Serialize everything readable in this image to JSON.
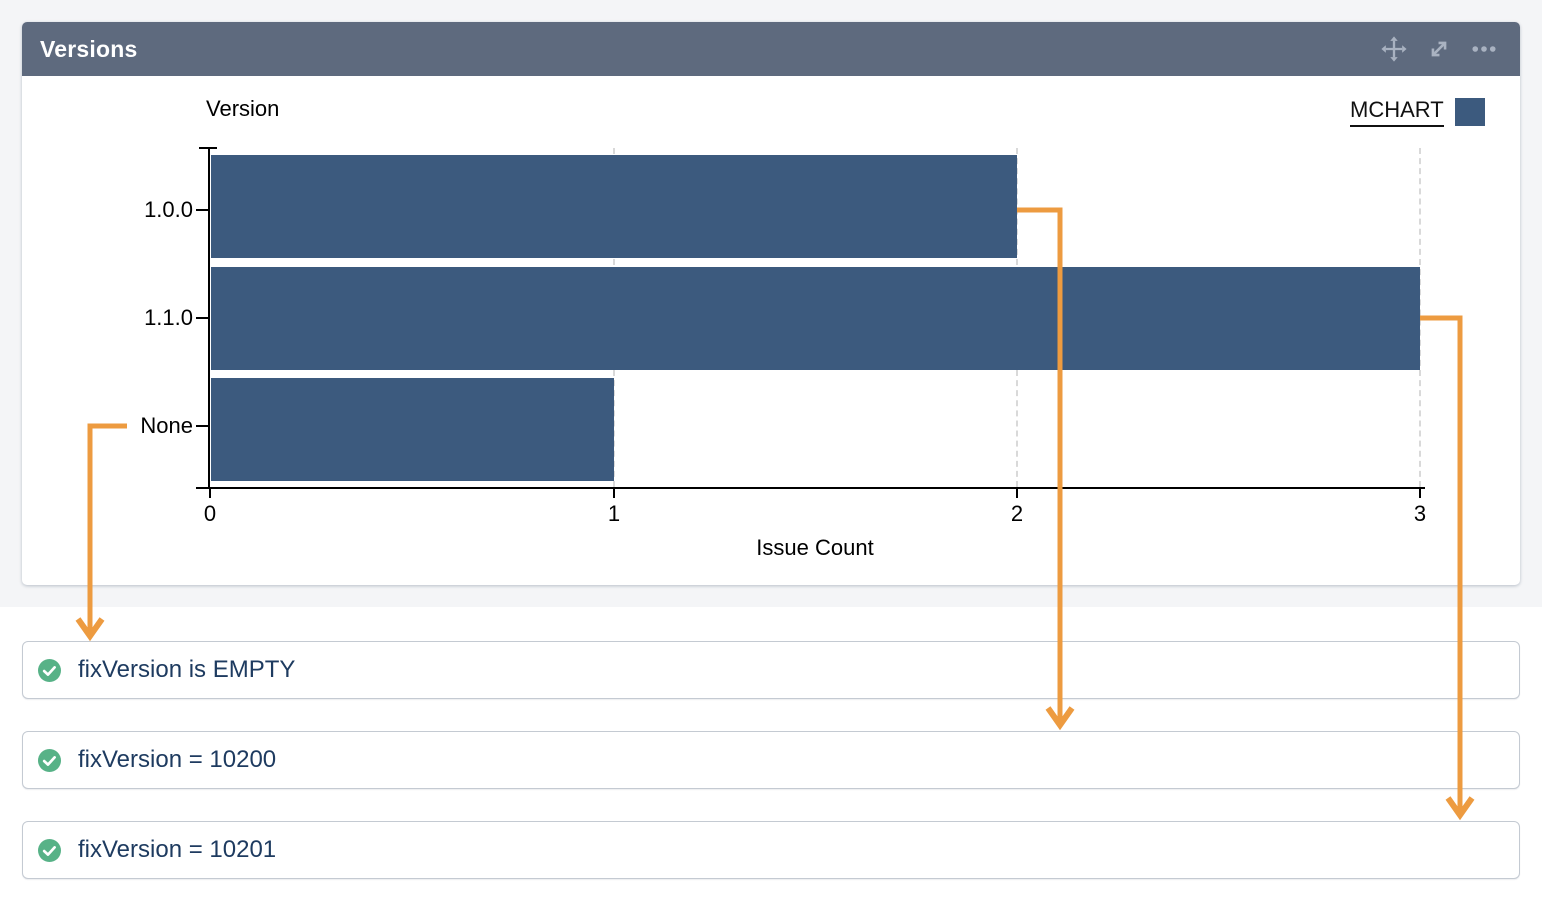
{
  "panel": {
    "title": "Versions",
    "toolbar": [
      {
        "name": "move",
        "icon": "move-icon"
      },
      {
        "name": "expand",
        "icon": "expand-icon"
      },
      {
        "name": "more",
        "icon": "ellipsis-icon"
      }
    ]
  },
  "chart_data": {
    "type": "bar",
    "orientation": "horizontal",
    "title": "",
    "ylabel": "Version",
    "xlabel": "Issue Count",
    "categories": [
      "1.0.0",
      "1.1.0",
      "None"
    ],
    "series": [
      {
        "name": "MCHART",
        "values": [
          2,
          3,
          1
        ]
      }
    ],
    "xlim": [
      0,
      3
    ],
    "xticks": [
      "0",
      "1",
      "2",
      "3"
    ],
    "legend": {
      "label": "MCHART",
      "position": "top-right",
      "underlined": true
    },
    "grid": {
      "vertical_dashed_at_values": [
        1,
        2,
        3
      ]
    }
  },
  "filters": [
    {
      "icon": "check-circle",
      "label": "fixVersion is EMPTY"
    },
    {
      "icon": "check-circle",
      "label": "fixVersion = 10200"
    },
    {
      "icon": "check-circle",
      "label": "fixVersion = 10201"
    }
  ],
  "annotations": {
    "arrows": [
      {
        "from": "category-label-None",
        "to": "filter-fixVersion-is-EMPTY"
      },
      {
        "from": "bar-1.0.0-end-value-2",
        "to": "filter-fixVersion-10200"
      },
      {
        "from": "bar-1.1.0-end-value-3",
        "to": "filter-fixVersion-10201"
      }
    ]
  },
  "colors": {
    "header_bg": "#5e6a7e",
    "bar": "#3c5a7e",
    "arrow": "#ed9b40",
    "check_green": "#57b287",
    "filter_text": "#1e3b60"
  }
}
